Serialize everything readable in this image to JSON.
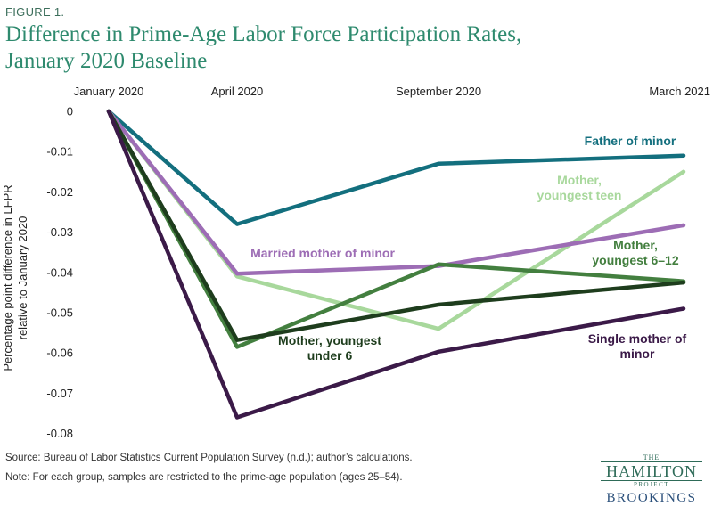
{
  "figure_label": "FIGURE 1.",
  "title_line1": "Difference in Prime-Age Labor Force Participation Rates,",
  "title_line2": "January 2020 Baseline",
  "source": "Source:  Bureau of Labor Statistics Current Population Survey (n.d.); author’s calculations.",
  "note": "Note: For each group, samples are restricted to the prime-age population (ages 25–54).",
  "logo": {
    "the": "THE",
    "hamilton": "HAMILTON",
    "project": "PROJECT",
    "brookings": "BROOKINGS"
  },
  "chart_data": {
    "type": "line",
    "x": [
      "January 2020",
      "April 2020",
      "September 2020",
      "March 2021"
    ],
    "ylabel_lines": [
      "Percentage point difference in LFPR",
      "relative to January 2020"
    ],
    "ylim": [
      -0.08,
      0
    ],
    "yticks": [
      0,
      -0.01,
      -0.02,
      -0.03,
      -0.04,
      -0.05,
      -0.06,
      -0.07,
      -0.08
    ],
    "ytick_labels": [
      "0",
      "-0.01",
      "-0.02",
      "-0.03",
      "-0.04",
      "-0.05",
      "-0.06",
      "-0.07",
      "-0.08"
    ],
    "grid": false,
    "legend": "direct labels",
    "series": [
      {
        "name": "Father of minor",
        "label_lines": [
          "Father of minor"
        ],
        "color": "#136f7e",
        "values": [
          0,
          -0.028,
          -0.013,
          -0.011
        ]
      },
      {
        "name": "Mother, youngest teen",
        "label_lines": [
          "Mother,",
          "youngest teen"
        ],
        "color": "#a8d89c",
        "values": [
          0,
          -0.041,
          -0.054,
          -0.015
        ]
      },
      {
        "name": "Married mother of minor",
        "label_lines": [
          "Married mother of minor"
        ],
        "color": "#9d6db5",
        "values": [
          0,
          -0.0403,
          -0.0384,
          -0.0283
        ]
      },
      {
        "name": "Mother, youngest 6–12",
        "label_lines": [
          "Mother,",
          "youngest 6–12"
        ],
        "color": "#437f3f",
        "values": [
          0,
          -0.0585,
          -0.038,
          -0.0422
        ]
      },
      {
        "name": "Mother, youngest under 6",
        "label_lines": [
          "Mother, youngest",
          "under 6"
        ],
        "color": "#1e3d1d",
        "values": [
          0,
          -0.0568,
          -0.048,
          -0.0425
        ]
      },
      {
        "name": "Single mother of minor",
        "label_lines": [
          "Single mother of",
          "minor"
        ],
        "color": "#3b1a48",
        "values": [
          0,
          -0.076,
          -0.0597,
          -0.049
        ]
      }
    ]
  }
}
